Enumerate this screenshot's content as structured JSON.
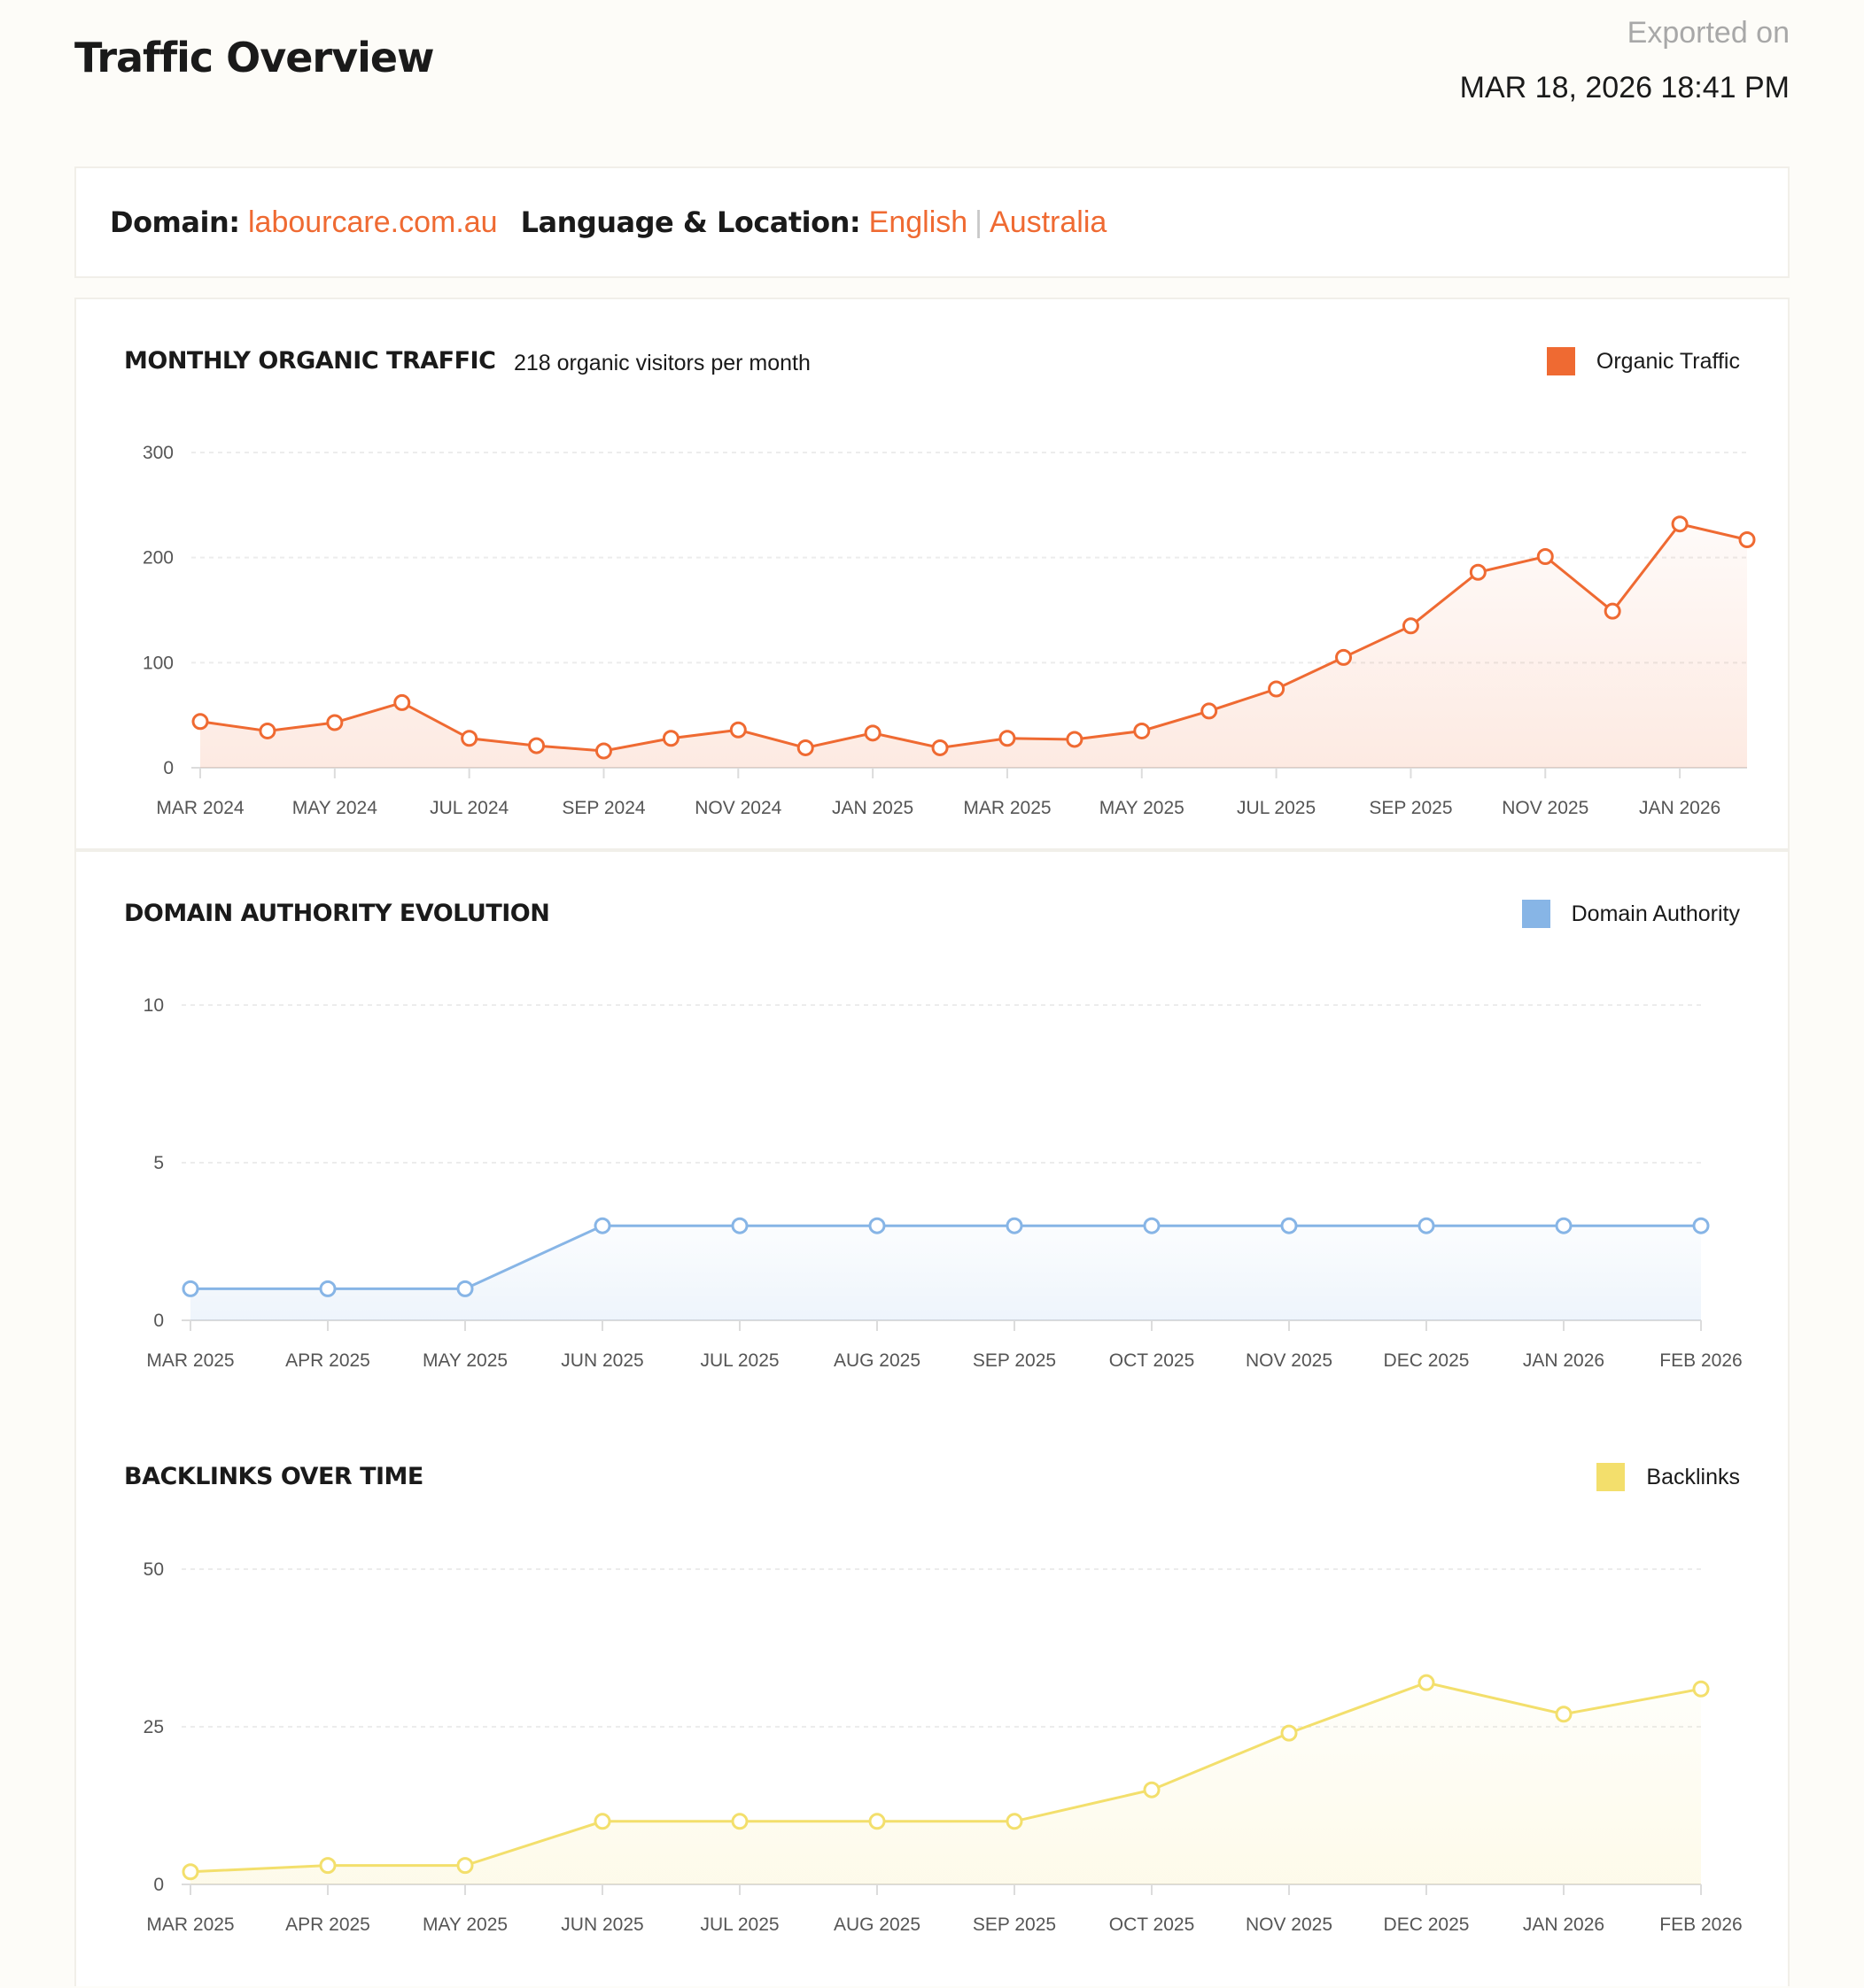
{
  "header": {
    "title": "Traffic Overview",
    "export_label": "Exported on",
    "export_date": "MAR 18, 2026 18:41 PM"
  },
  "info": {
    "domain_label": "Domain:",
    "domain_value": "labourcare.com.au",
    "lang_label": "Language & Location:",
    "language": "English",
    "separator": "|",
    "location": "Australia"
  },
  "colors": {
    "organic": "#ef6a32",
    "authority": "#87b5e6",
    "backlinks": "#f3df6c"
  },
  "chart_data": [
    {
      "id": "organic",
      "type": "area",
      "title": "MONTHLY ORGANIC TRAFFIC",
      "subtitle": "218 organic visitors per month",
      "legend": "Organic Traffic",
      "ylim": [
        0,
        300
      ],
      "yticks": [
        "0",
        "100",
        "200",
        "300"
      ],
      "x": [
        "MAR 2024",
        "APR 2024",
        "MAY 2024",
        "JUN 2024",
        "JUL 2024",
        "AUG 2024",
        "SEP 2024",
        "OCT 2024",
        "NOV 2024",
        "DEC 2024",
        "JAN 2025",
        "FEB 2025",
        "MAR 2025",
        "APR 2025",
        "MAY 2025",
        "JUN 2025",
        "JUL 2025",
        "AUG 2025",
        "SEP 2025",
        "OCT 2025",
        "NOV 2025",
        "DEC 2025",
        "JAN 2026",
        "FEB 2026"
      ],
      "x_tick_labels": [
        "MAR 2024",
        "MAY 2024",
        "JUL 2024",
        "SEP 2024",
        "NOV 2024",
        "JAN 2025",
        "MAR 2025",
        "MAY 2025",
        "JUL 2025",
        "SEP 2025",
        "NOV 2025",
        "JAN 2026"
      ],
      "values": [
        44,
        35,
        43,
        62,
        28,
        21,
        16,
        28,
        36,
        19,
        33,
        19,
        28,
        27,
        35,
        54,
        75,
        105,
        135,
        186,
        201,
        149,
        232,
        217
      ]
    },
    {
      "id": "authority",
      "type": "area",
      "title": "DOMAIN AUTHORITY EVOLUTION",
      "legend": "Domain Authority",
      "ylim": [
        0,
        10
      ],
      "yticks": [
        "0",
        "5",
        "10"
      ],
      "x": [
        "MAR 2025",
        "APR 2025",
        "MAY 2025",
        "JUN 2025",
        "JUL 2025",
        "AUG 2025",
        "SEP 2025",
        "OCT 2025",
        "NOV 2025",
        "DEC 2025",
        "JAN 2026",
        "FEB 2026"
      ],
      "x_tick_labels": [
        "MAR 2025",
        "APR 2025",
        "MAY 2025",
        "JUN 2025",
        "JUL 2025",
        "AUG 2025",
        "SEP 2025",
        "OCT 2025",
        "NOV 2025",
        "DEC 2025",
        "JAN 2026",
        "FEB 2026"
      ],
      "values": [
        1,
        1,
        1,
        3,
        3,
        3,
        3,
        3,
        3,
        3,
        3,
        3
      ]
    },
    {
      "id": "backlinks",
      "type": "area",
      "title": "BACKLINKS OVER TIME",
      "legend": "Backlinks",
      "ylim": [
        0,
        50
      ],
      "yticks": [
        "0",
        "25",
        "50"
      ],
      "x": [
        "MAR 2025",
        "APR 2025",
        "MAY 2025",
        "JUN 2025",
        "JUL 2025",
        "AUG 2025",
        "SEP 2025",
        "OCT 2025",
        "NOV 2025",
        "DEC 2025",
        "JAN 2026",
        "FEB 2026"
      ],
      "x_tick_labels": [
        "MAR 2025",
        "APR 2025",
        "MAY 2025",
        "JUN 2025",
        "JUL 2025",
        "AUG 2025",
        "SEP 2025",
        "OCT 2025",
        "NOV 2025",
        "DEC 2025",
        "JAN 2026",
        "FEB 2026"
      ],
      "values": [
        2,
        3,
        3,
        10,
        10,
        10,
        10,
        15,
        24,
        32,
        27,
        31
      ]
    }
  ]
}
